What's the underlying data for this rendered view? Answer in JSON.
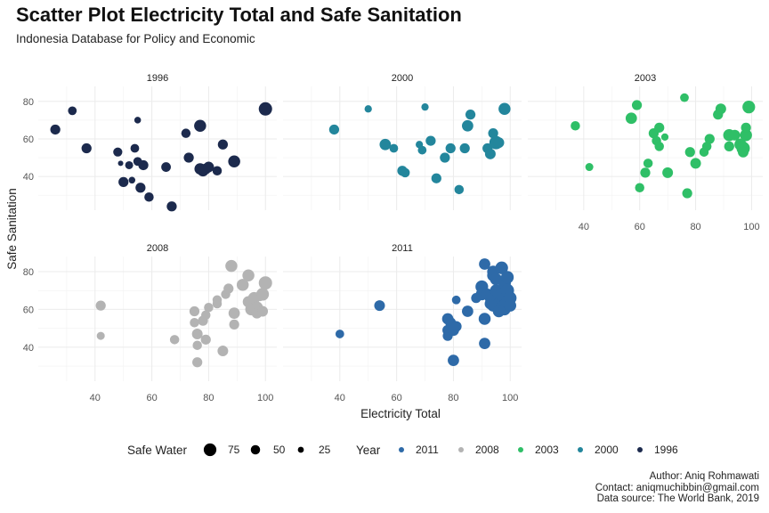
{
  "title": "Scatter Plot Electricity Total and Safe Sanitation",
  "subtitle": "Indonesia Database for Policy and Economic",
  "caption": {
    "author": "Author: Aniq Rohmawati",
    "contact": "Contact: aniqmuchibbin@gmail.com",
    "source": "Data source: The World Bank, 2019"
  },
  "chart_data": {
    "type": "scatter",
    "xlabel": "Electricity Total",
    "ylabel": "Safe Sanitation",
    "x_ticks": [
      40,
      60,
      80,
      100
    ],
    "y_ticks": [
      40,
      60,
      80
    ],
    "xlim": [
      20,
      104
    ],
    "ylim": [
      22,
      88
    ],
    "legend_position": "bottom",
    "size_legend": {
      "title": "Safe Water",
      "entries": [
        75,
        50,
        25
      ]
    },
    "color_legend": {
      "title": "Year",
      "entries": [
        {
          "label": "2011",
          "color": "#2e6aa8"
        },
        {
          "label": "2008",
          "color": "#b3b3b3"
        },
        {
          "label": "2003",
          "color": "#2fbf67"
        },
        {
          "label": "2000",
          "color": "#23869c"
        },
        {
          "label": "1996",
          "color": "#1c2a4d"
        }
      ]
    },
    "panels": [
      {
        "year": "1996",
        "color": "#1c2a4d",
        "points": [
          [
            26,
            65,
            55
          ],
          [
            32,
            75,
            45
          ],
          [
            37,
            55,
            55
          ],
          [
            48,
            53,
            48
          ],
          [
            49,
            47,
            20
          ],
          [
            50,
            37,
            55
          ],
          [
            52,
            46,
            40
          ],
          [
            53,
            38,
            30
          ],
          [
            54,
            55,
            45
          ],
          [
            55,
            70,
            30
          ],
          [
            55,
            48,
            45
          ],
          [
            56,
            34,
            55
          ],
          [
            57,
            46,
            55
          ],
          [
            59,
            29,
            50
          ],
          [
            65,
            45,
            52
          ],
          [
            67,
            24,
            55
          ],
          [
            72,
            63,
            50
          ],
          [
            73,
            50,
            55
          ],
          [
            77,
            67,
            70
          ],
          [
            77,
            44,
            65
          ],
          [
            78,
            43,
            65
          ],
          [
            79,
            44,
            60
          ],
          [
            80,
            45,
            60
          ],
          [
            83,
            43,
            50
          ],
          [
            85,
            57,
            55
          ],
          [
            89,
            48,
            70
          ],
          [
            100,
            76,
            80
          ]
        ]
      },
      {
        "year": "2000",
        "color": "#23869c",
        "points": [
          [
            38,
            65,
            55
          ],
          [
            50,
            76,
            35
          ],
          [
            56,
            57,
            65
          ],
          [
            59,
            55,
            45
          ],
          [
            62,
            43,
            55
          ],
          [
            63,
            42,
            50
          ],
          [
            68,
            57,
            35
          ],
          [
            69,
            54,
            45
          ],
          [
            70,
            77,
            35
          ],
          [
            72,
            59,
            55
          ],
          [
            74,
            39,
            55
          ],
          [
            77,
            50,
            55
          ],
          [
            79,
            55,
            55
          ],
          [
            82,
            33,
            50
          ],
          [
            84,
            55,
            55
          ],
          [
            85,
            67,
            65
          ],
          [
            86,
            73,
            55
          ],
          [
            92,
            55,
            55
          ],
          [
            93,
            52,
            60
          ],
          [
            94,
            63,
            55
          ],
          [
            95,
            58,
            80
          ],
          [
            96,
            58,
            60
          ],
          [
            98,
            76,
            70
          ]
        ]
      },
      {
        "year": "2003",
        "color": "#2fbf67",
        "points": [
          [
            37,
            67,
            50
          ],
          [
            42,
            45,
            40
          ],
          [
            57,
            71,
            65
          ],
          [
            59,
            78,
            55
          ],
          [
            60,
            34,
            50
          ],
          [
            62,
            42,
            55
          ],
          [
            63,
            47,
            50
          ],
          [
            65,
            63,
            55
          ],
          [
            66,
            59,
            50
          ],
          [
            67,
            56,
            50
          ],
          [
            67,
            66,
            55
          ],
          [
            69,
            61,
            35
          ],
          [
            70,
            42,
            60
          ],
          [
            76,
            82,
            45
          ],
          [
            77,
            31,
            55
          ],
          [
            78,
            53,
            55
          ],
          [
            80,
            47,
            60
          ],
          [
            83,
            53,
            50
          ],
          [
            84,
            56,
            50
          ],
          [
            85,
            60,
            55
          ],
          [
            88,
            73,
            55
          ],
          [
            89,
            76,
            60
          ],
          [
            92,
            62,
            70
          ],
          [
            92,
            56,
            55
          ],
          [
            94,
            62,
            60
          ],
          [
            96,
            57,
            70
          ],
          [
            97,
            55,
            80
          ],
          [
            97,
            53,
            60
          ],
          [
            98,
            62,
            70
          ],
          [
            98,
            66,
            55
          ],
          [
            99,
            77,
            75
          ]
        ]
      },
      {
        "year": "2008",
        "color": "#b3b3b3",
        "points": [
          [
            42,
            62,
            55
          ],
          [
            42,
            46,
            40
          ],
          [
            68,
            44,
            50
          ],
          [
            75,
            59,
            55
          ],
          [
            75,
            53,
            50
          ],
          [
            76,
            47,
            60
          ],
          [
            76,
            41,
            50
          ],
          [
            76,
            32,
            55
          ],
          [
            78,
            54,
            55
          ],
          [
            79,
            57,
            50
          ],
          [
            79,
            44,
            55
          ],
          [
            80,
            61,
            50
          ],
          [
            83,
            65,
            50
          ],
          [
            83,
            63,
            50
          ],
          [
            85,
            38,
            60
          ],
          [
            86,
            68,
            50
          ],
          [
            87,
            71,
            55
          ],
          [
            88,
            83,
            70
          ],
          [
            89,
            58,
            65
          ],
          [
            89,
            52,
            55
          ],
          [
            92,
            73,
            70
          ],
          [
            94,
            78,
            70
          ],
          [
            94,
            64,
            65
          ],
          [
            95,
            60,
            70
          ],
          [
            96,
            66,
            70
          ],
          [
            97,
            61,
            70
          ],
          [
            97,
            58,
            60
          ],
          [
            98,
            67,
            55
          ],
          [
            99,
            59,
            60
          ],
          [
            99,
            68,
            75
          ],
          [
            100,
            74,
            80
          ]
        ]
      },
      {
        "year": "2011",
        "color": "#2e6aa8",
        "points": [
          [
            40,
            47,
            45
          ],
          [
            54,
            62,
            60
          ],
          [
            78,
            55,
            65
          ],
          [
            78,
            49,
            60
          ],
          [
            78,
            46,
            55
          ],
          [
            79,
            53,
            60
          ],
          [
            80,
            49,
            65
          ],
          [
            80,
            33,
            65
          ],
          [
            81,
            65,
            45
          ],
          [
            81,
            51,
            60
          ],
          [
            85,
            59,
            65
          ],
          [
            88,
            66,
            55
          ],
          [
            90,
            72,
            75
          ],
          [
            90,
            68,
            70
          ],
          [
            91,
            42,
            65
          ],
          [
            91,
            55,
            70
          ],
          [
            91,
            84,
            65
          ],
          [
            92,
            68,
            65
          ],
          [
            93,
            66,
            65
          ],
          [
            93,
            63,
            65
          ],
          [
            94,
            80,
            70
          ],
          [
            94,
            78,
            70
          ],
          [
            94,
            62,
            70
          ],
          [
            95,
            76,
            70
          ],
          [
            95,
            70,
            70
          ],
          [
            96,
            63,
            70
          ],
          [
            96,
            59,
            70
          ],
          [
            97,
            66,
            75
          ],
          [
            97,
            82,
            75
          ],
          [
            97,
            68,
            75
          ],
          [
            98,
            62,
            75
          ],
          [
            98,
            60,
            70
          ],
          [
            98,
            74,
            75
          ],
          [
            99,
            64,
            75
          ],
          [
            99,
            70,
            80
          ],
          [
            99,
            77,
            75
          ],
          [
            100,
            66,
            75
          ],
          [
            100,
            62,
            70
          ]
        ]
      }
    ]
  }
}
